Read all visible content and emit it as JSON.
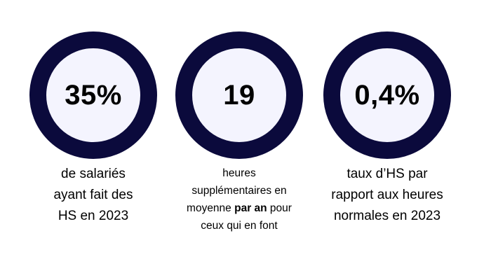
{
  "stats": [
    {
      "value": "35%",
      "caption_lines": [
        "de salariés",
        "ayant fait des",
        "HS en 2023"
      ]
    },
    {
      "value": "19",
      "caption_lines": [
        "heures",
        "supplémentaires en"
      ],
      "caption_line3_before": "moyenne ",
      "caption_line3_bold": "par an",
      "caption_line3_after": " pour",
      "caption_line4": "ceux qui en font"
    },
    {
      "value": "0,4%",
      "caption_lines": [
        "taux d’HS par",
        "rapport aux heures",
        "normales en 2023"
      ]
    }
  ],
  "colors": {
    "ring": "#0b0a3c",
    "circle_fill": "#f4f4fe",
    "text": "#000000"
  }
}
